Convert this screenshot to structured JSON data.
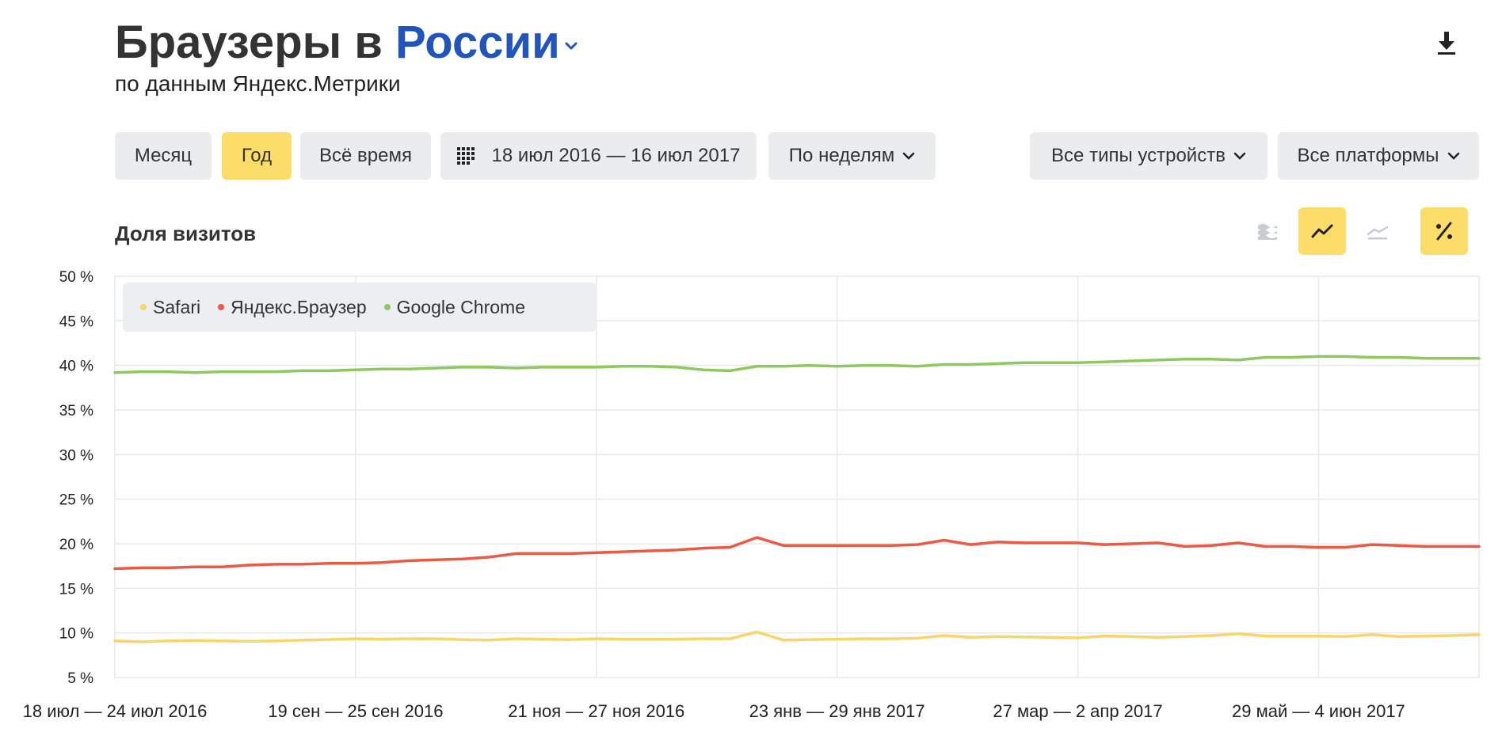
{
  "header": {
    "title_prefix": "Браузеры в",
    "title_region": "России",
    "subtitle": "по данным Яндекс.Метрики"
  },
  "toolbar": {
    "month": "Месяц",
    "year": "Год",
    "all_time": "Всё время",
    "date_range": "18 июл 2016 — 16 июл 2017",
    "grouping": "По неделям",
    "devices": "Все типы устройств",
    "platforms": "Все платформы"
  },
  "colors": {
    "accent": "#fddd6a",
    "link": "#2255bb",
    "button_bg": "#eaecee"
  },
  "icons": {
    "download": "download-icon",
    "calendar": "calendar-icon",
    "stacked": "stacked-area-icon",
    "line": "line-chart-icon",
    "area": "area-chart-icon",
    "percent": "percent-icon"
  },
  "chart_data": {
    "type": "line",
    "title": "Доля визитов",
    "y_ticks": [
      "5 %",
      "10 %",
      "15 %",
      "20 %",
      "25 %",
      "30 %",
      "35 %",
      "40 %",
      "45 %",
      "50 %"
    ],
    "ylim": [
      5,
      50
    ],
    "grid": true,
    "legend_position": "top-left",
    "x_labels": [
      {
        "index": 0,
        "label": "18 июл — 24 июл 2016"
      },
      {
        "index": 9,
        "label": "19 сен — 25 сен 2016"
      },
      {
        "index": 18,
        "label": "21 ноя — 27 ноя 2016"
      },
      {
        "index": 27,
        "label": "23 янв — 29 янв 2017"
      },
      {
        "index": 36,
        "label": "27 мар — 2 апр 2017"
      },
      {
        "index": 45,
        "label": "29 май — 4 июн 2017"
      }
    ],
    "series": [
      {
        "name": "Safari",
        "color": "#f6d66a",
        "values": [
          9.1,
          9.0,
          9.1,
          9.15,
          9.1,
          9.05,
          9.1,
          9.2,
          9.25,
          9.35,
          9.3,
          9.35,
          9.35,
          9.25,
          9.2,
          9.35,
          9.3,
          9.25,
          9.35,
          9.3,
          9.3,
          9.3,
          9.35,
          9.35,
          10.1,
          9.2,
          9.25,
          9.3,
          9.35,
          9.35,
          9.4,
          9.7,
          9.5,
          9.6,
          9.55,
          9.5,
          9.45,
          9.65,
          9.6,
          9.5,
          9.6,
          9.7,
          9.9,
          9.65,
          9.65,
          9.65,
          9.6,
          9.8,
          9.6,
          9.65,
          9.7,
          9.8
        ]
      },
      {
        "name": "Яндекс.Браузер",
        "color": "#ea5a45",
        "values": [
          17.2,
          17.3,
          17.3,
          17.4,
          17.4,
          17.6,
          17.7,
          17.7,
          17.8,
          17.8,
          17.9,
          18.1,
          18.2,
          18.3,
          18.5,
          18.9,
          18.9,
          18.9,
          19.0,
          19.1,
          19.2,
          19.3,
          19.5,
          19.6,
          20.7,
          19.8,
          19.8,
          19.8,
          19.8,
          19.8,
          19.9,
          20.4,
          19.9,
          20.2,
          20.1,
          20.1,
          20.1,
          19.9,
          20.0,
          20.1,
          19.7,
          19.8,
          20.1,
          19.7,
          19.7,
          19.6,
          19.6,
          19.9,
          19.8,
          19.7,
          19.7,
          19.7
        ]
      },
      {
        "name": "Google Chrome",
        "color": "#8fc85e",
        "values": [
          39.2,
          39.3,
          39.3,
          39.2,
          39.3,
          39.3,
          39.3,
          39.4,
          39.4,
          39.5,
          39.6,
          39.6,
          39.7,
          39.8,
          39.8,
          39.7,
          39.8,
          39.8,
          39.8,
          39.9,
          39.9,
          39.8,
          39.5,
          39.4,
          39.9,
          39.9,
          40.0,
          39.9,
          40.0,
          40.0,
          39.9,
          40.1,
          40.1,
          40.2,
          40.3,
          40.3,
          40.3,
          40.4,
          40.5,
          40.6,
          40.7,
          40.7,
          40.6,
          40.9,
          40.9,
          41.0,
          41.0,
          40.9,
          40.9,
          40.8,
          40.8,
          40.8
        ]
      }
    ]
  }
}
